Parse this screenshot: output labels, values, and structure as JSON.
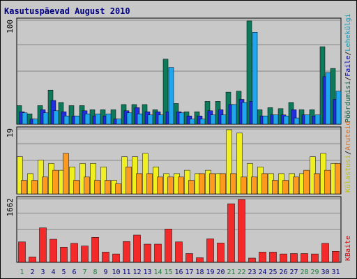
{
  "chart_data": {
    "type": "bar",
    "title": "Kasutuspäevad August 2010",
    "days": [
      {
        "label": "1",
        "weekend": true
      },
      {
        "label": "2",
        "weekend": false
      },
      {
        "label": "3",
        "weekend": false
      },
      {
        "label": "4",
        "weekend": false
      },
      {
        "label": "5",
        "weekend": false
      },
      {
        "label": "6",
        "weekend": false
      },
      {
        "label": "7",
        "weekend": true
      },
      {
        "label": "8",
        "weekend": true
      },
      {
        "label": "9",
        "weekend": false
      },
      {
        "label": "10",
        "weekend": false
      },
      {
        "label": "11",
        "weekend": false
      },
      {
        "label": "12",
        "weekend": false
      },
      {
        "label": "13",
        "weekend": false
      },
      {
        "label": "14",
        "weekend": true
      },
      {
        "label": "15",
        "weekend": true
      },
      {
        "label": "16",
        "weekend": false
      },
      {
        "label": "17",
        "weekend": false
      },
      {
        "label": "18",
        "weekend": false
      },
      {
        "label": "19",
        "weekend": false
      },
      {
        "label": "20",
        "weekend": false
      },
      {
        "label": "21",
        "weekend": true
      },
      {
        "label": "22",
        "weekend": true
      },
      {
        "label": "23",
        "weekend": false
      },
      {
        "label": "24",
        "weekend": false
      },
      {
        "label": "25",
        "weekend": false
      },
      {
        "label": "26",
        "weekend": false
      },
      {
        "label": "27",
        "weekend": false
      },
      {
        "label": "28",
        "weekend": true
      },
      {
        "label": "29",
        "weekend": true
      },
      {
        "label": "30",
        "weekend": false
      },
      {
        "label": "31",
        "weekend": false
      }
    ],
    "panels": [
      {
        "id": "top",
        "max_label": "100",
        "ylim": [
          0,
          100
        ],
        "legend": [
          {
            "text": "Pöördumisi",
            "color": "#006040"
          },
          {
            "text": "/",
            "color": "#000000"
          },
          {
            "text": "Faile",
            "color": "#0000c0"
          },
          {
            "text": "/",
            "color": "#000000"
          },
          {
            "text": "Lehekülgi",
            "color": "#00a0c0"
          }
        ],
        "series": [
          {
            "name": "Pöördumisi",
            "color": "#0e7a5c",
            "values": [
              18,
              10,
              18,
              33,
              21,
              18,
              18,
              14,
              14,
              14,
              19,
              19,
              19,
              14,
              63,
              20,
              12,
              12,
              22,
              22,
              31,
              32,
              100,
              14,
              16,
              15,
              21,
              14,
              14,
              75,
              54
            ]
          },
          {
            "name": "Faile",
            "color": "#1f2ede",
            "values": [
              12,
              5,
              14,
              23,
              12,
              8,
              13,
              8,
              8,
              5,
              13,
              16,
              12,
              12,
              12,
              12,
              8,
              8,
              13,
              14,
              19,
              24,
              22,
              8,
              9,
              9,
              14,
              9,
              8,
              46,
              24
            ]
          },
          {
            "name": "Lehekülgi",
            "color": "#1ea7ee",
            "values": [
              11,
              5,
              11,
              13,
              8,
              8,
              10,
              10,
              10,
              5,
              11,
              10,
              9,
              9,
              55,
              11,
              5,
              5,
              9,
              9,
              19,
              21,
              89,
              8,
              9,
              8,
              6,
              9,
              9,
              50,
              32
            ]
          }
        ]
      },
      {
        "id": "mid",
        "max_label": "19",
        "ylim": [
          0,
          19
        ],
        "legend": [
          {
            "text": "Külastusi",
            "color": "#c0c000"
          },
          {
            "text": "/",
            "color": "#000000"
          },
          {
            "text": "Aruteid",
            "color": "#e07020"
          }
        ],
        "series": [
          {
            "name": "Külastusi",
            "color": "#f0f020",
            "values": [
              11,
              6,
              10,
              9,
              7,
              8,
              9,
              9,
              8,
              4,
              11,
              11,
              12,
              8,
              6,
              6,
              7,
              6,
              7,
              6,
              19,
              18,
              9,
              8,
              6,
              6,
              6,
              6,
              11,
              12,
              9
            ]
          },
          {
            "name": "Aruteid",
            "color": "#ff9a1e",
            "values": [
              4,
              4,
              5,
              7,
              12,
              4,
              5,
              4,
              4,
              3,
              8,
              6,
              6,
              5,
              5,
              5,
              4,
              6,
              6,
              6,
              6,
              5,
              5,
              6,
              4,
              4,
              5,
              7,
              6,
              7,
              9
            ]
          }
        ]
      },
      {
        "id": "bottom",
        "max_label": "1662",
        "ylim": [
          0,
          1662
        ],
        "legend": [
          {
            "text": "KBaite",
            "color": "#e00000"
          }
        ],
        "series": [
          {
            "name": "KBaite",
            "color": "#f42a2a",
            "values": [
              540,
              140,
              910,
              610,
              400,
              500,
              430,
              660,
              270,
              220,
              550,
              720,
              480,
              480,
              880,
              540,
              230,
              120,
              620,
              510,
              1550,
              1662,
              110,
              270,
              270,
              220,
              230,
              230,
              220,
              500,
              290
            ]
          }
        ]
      }
    ]
  }
}
